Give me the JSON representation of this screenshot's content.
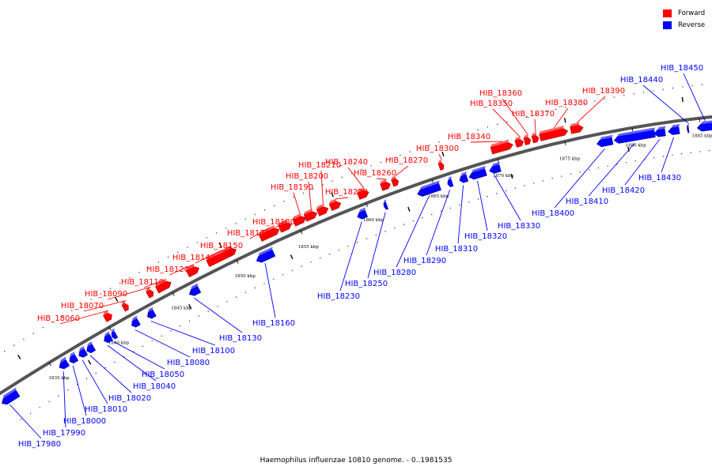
{
  "legend": [
    {
      "label": "Forward",
      "color": "#ff0000"
    },
    {
      "label": "Reverse",
      "color": "#0000ff"
    }
  ],
  "caption": "Haemophilus influenzae 10810 genome. - 0..1981535",
  "colors": {
    "forward": "#ff0000",
    "reverse": "#0000ff",
    "backbone": "#555555"
  },
  "ticks": [
    "1835 kbp",
    "1840 kbp",
    "1845 kbp",
    "1850 kbp",
    "1855 kbp",
    "1860 kbp",
    "1865 kbp",
    "1870 kbp",
    "1875 kbp",
    "1880 kbp",
    "1885 kbp"
  ],
  "forward_genes": [
    "HIB_18060",
    "HIB_18070",
    "HIB_18090",
    "HIB_18110",
    "HIB_18120",
    "HIB_18140",
    "HIB_18150",
    "HIB_18170",
    "HIB_18180",
    "HIB_18190",
    "HIB_18200",
    "HIB_18210",
    "HIB_18220",
    "HIB_18240",
    "HIB_18260",
    "HIB_18270",
    "HIB_18300",
    "HIB_18340",
    "HIB_18350",
    "HIB_18360",
    "HIB_18370",
    "HIB_18380",
    "HIB_18390"
  ],
  "reverse_genes": [
    "HIB_17980",
    "HIB_17990",
    "HIB_18000",
    "HIB_18010",
    "HIB_18020",
    "HIB_18040",
    "HIB_18050",
    "HIB_18080",
    "HIB_18100",
    "HIB_18130",
    "HIB_18160",
    "HIB_18230",
    "HIB_18250",
    "HIB_18280",
    "HIB_18290",
    "HIB_18310",
    "HIB_18320",
    "HIB_18330",
    "HIB_18400",
    "HIB_18410",
    "HIB_18420",
    "HIB_18430",
    "HIB_18440",
    "HIB_18450"
  ]
}
